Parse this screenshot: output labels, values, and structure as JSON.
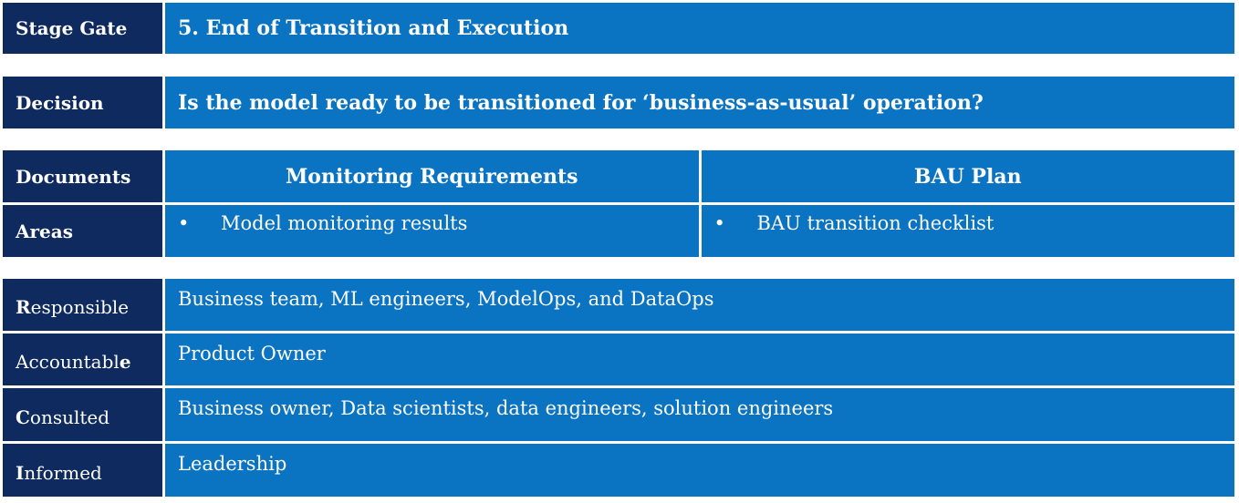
{
  "stage_gate": {
    "label": "Stage Gate",
    "value": "5. End of Transition and Execution"
  },
  "decision": {
    "label": "Decision",
    "value": "Is the model ready to be transitioned for ‘business-as-usual’ operation?"
  },
  "documents": {
    "label": "Documents",
    "areas_label": "Areas",
    "columns": [
      {
        "title": "Monitoring Requirements",
        "item": "Model monitoring results"
      },
      {
        "title": "BAU Plan",
        "item": "BAU transition checklist"
      }
    ],
    "bullet": "•"
  },
  "raci": [
    {
      "label_first": "R",
      "label_rest": "esponsible",
      "value": "Business team, ML engineers, ModelOps, and DataOps"
    },
    {
      "label_first": "Accountabl",
      "label_rest": "e",
      "value": "Product Owner",
      "bold_last": true
    },
    {
      "label_first": "C",
      "label_rest": "onsulted",
      "value": "Business owner, Data scientists, data engineers, solution engineers"
    },
    {
      "label_first": "I",
      "label_rest": "nformed",
      "value": "Leadership"
    }
  ]
}
